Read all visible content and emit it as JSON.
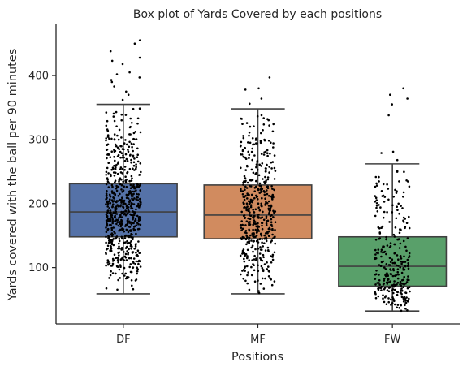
{
  "chart_data": {
    "type": "box",
    "title": "Box plot of Yards Covered by each positions",
    "xlabel": "Positions",
    "ylabel": "Yards covered with the ball per 90 minutes",
    "categories": [
      "DF",
      "MF",
      "FW"
    ],
    "yticks": [
      100,
      200,
      300,
      400
    ],
    "ylim": [
      12,
      480
    ],
    "grid": false,
    "series": [
      {
        "category": "DF",
        "color": "#5572a8",
        "whisker_low": 59,
        "q1": 148,
        "median": 187,
        "q3": 231,
        "whisker_high": 355,
        "count": 650,
        "outliers": [
          362,
          370,
          375,
          383,
          390,
          393,
          397,
          402,
          405,
          418,
          423,
          428,
          438,
          450,
          455
        ]
      },
      {
        "category": "MF",
        "color": "#d18b5f",
        "whisker_low": 59,
        "q1": 145,
        "median": 182,
        "q3": 229,
        "whisker_high": 348,
        "count": 470,
        "outliers": [
          356,
          364,
          378,
          380,
          397
        ]
      },
      {
        "category": "FW",
        "color": "#59a06a",
        "whisker_low": 32,
        "q1": 71,
        "median": 102,
        "q3": 148,
        "whisker_high": 262,
        "count": 300,
        "outliers": [
          268,
          279,
          281,
          338,
          355,
          364,
          370,
          380
        ]
      }
    ],
    "points_color": "#000000",
    "line_color": "#404040"
  }
}
